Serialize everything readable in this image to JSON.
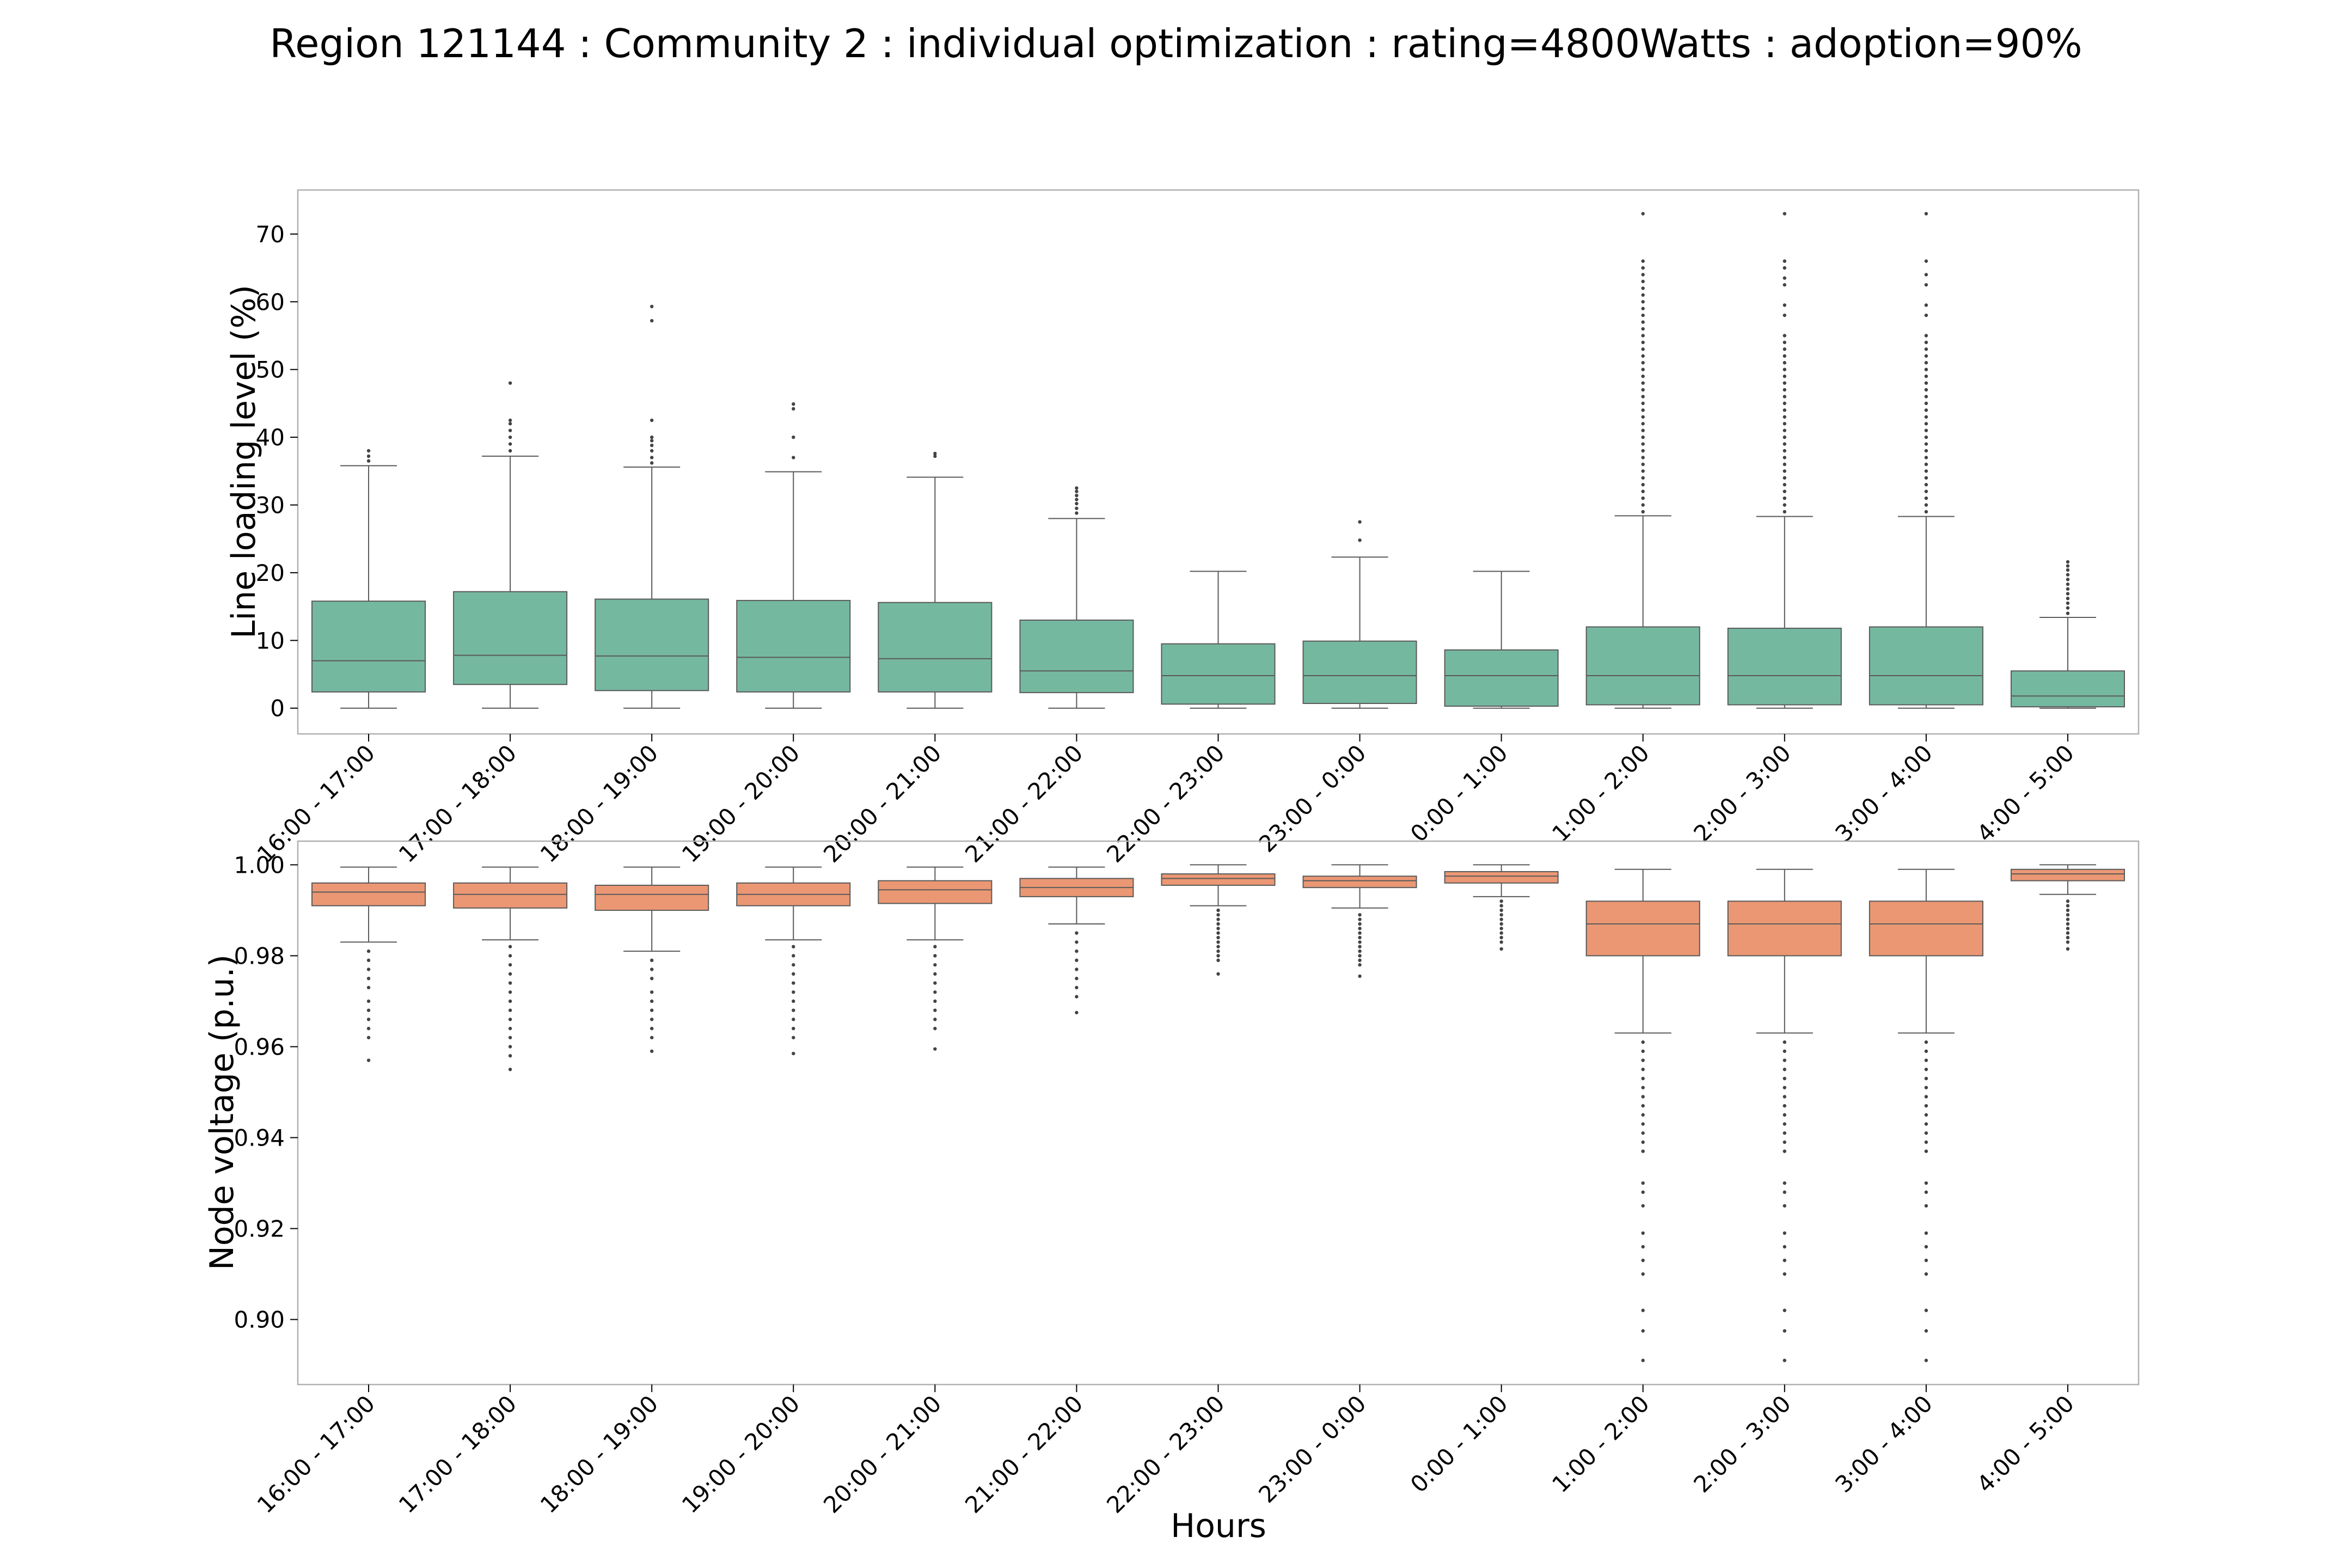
{
  "figure_title": "Region 121144 : Community 2 : individual optimization : rating=4800Watts : adoption=90%",
  "colors": {
    "line_box": "#75b8a0",
    "voltage_box": "#eb9774",
    "box_edge": "#5a5a5a",
    "axes_edge": "#b0b0b0",
    "flier": "#444444"
  },
  "chart_data": [
    {
      "type": "box",
      "title": "",
      "xlabel": "",
      "ylabel": "Line loading level (%)",
      "ylim": [
        -3.8,
        76.5
      ],
      "yticks": [
        0,
        10,
        20,
        30,
        40,
        50,
        60,
        70
      ],
      "ytick_labels": [
        "0",
        "10",
        "20",
        "30",
        "40",
        "50",
        "60",
        "70"
      ],
      "categories": [
        "16:00 - 17:00",
        "17:00 - 18:00",
        "18:00 - 19:00",
        "19:00 - 20:00",
        "20:00 - 21:00",
        "21:00 - 22:00",
        "22:00 - 23:00",
        "23:00 - 0:00",
        "0:00 - 1:00",
        "1:00 - 2:00",
        "2:00 - 3:00",
        "3:00 - 4:00",
        "4:00 - 5:00"
      ],
      "boxes": [
        {
          "whislo": 0,
          "q1": 2.4,
          "med": 7.0,
          "q3": 15.8,
          "whishi": 35.8,
          "fliers": [
            36.5,
            37.2,
            38.0
          ]
        },
        {
          "whislo": 0,
          "q1": 3.5,
          "med": 7.8,
          "q3": 17.2,
          "whishi": 37.2,
          "fliers": [
            38.0,
            39.0,
            40.0,
            41.0,
            42.0,
            42.5,
            48.0
          ]
        },
        {
          "whislo": 0,
          "q1": 2.6,
          "med": 7.7,
          "q3": 16.1,
          "whishi": 35.6,
          "fliers": [
            36.2,
            37.0,
            38.0,
            38.8,
            39.5,
            40.0,
            42.5,
            57.2,
            59.3
          ]
        },
        {
          "whislo": 0,
          "q1": 2.4,
          "med": 7.5,
          "q3": 15.9,
          "whishi": 34.9,
          "fliers": [
            37.0,
            40.0,
            44.2,
            44.9
          ]
        },
        {
          "whislo": 0,
          "q1": 2.4,
          "med": 7.3,
          "q3": 15.6,
          "whishi": 34.1,
          "fliers": [
            37.2,
            37.6
          ]
        },
        {
          "whislo": 0,
          "q1": 2.3,
          "med": 5.5,
          "q3": 13.0,
          "whishi": 28.0,
          "fliers": [
            28.8,
            29.5,
            30.2,
            30.8,
            31.4,
            32.0,
            32.5
          ]
        },
        {
          "whislo": 0,
          "q1": 0.6,
          "med": 4.8,
          "q3": 9.5,
          "whishi": 20.2,
          "fliers": []
        },
        {
          "whislo": 0,
          "q1": 0.7,
          "med": 4.8,
          "q3": 9.9,
          "whishi": 22.3,
          "fliers": [
            24.8,
            27.5
          ]
        },
        {
          "whislo": 0,
          "q1": 0.3,
          "med": 4.8,
          "q3": 8.6,
          "whishi": 20.2,
          "fliers": []
        },
        {
          "whislo": 0,
          "q1": 0.5,
          "med": 4.8,
          "q3": 12.0,
          "whishi": 28.4,
          "fliers": [
            29.0,
            30.0,
            31.0,
            32.0,
            33.0,
            34.0,
            35.0,
            36.0,
            37.0,
            38.0,
            39.0,
            40.0,
            41.0,
            42.0,
            43.0,
            44.0,
            45.0,
            46.0,
            47.0,
            48.0,
            49.0,
            50.0,
            51.0,
            52.0,
            53.0,
            54.0,
            55.0,
            56.0,
            57.0,
            58.0,
            59.0,
            60.0,
            61.0,
            62.0,
            63.0,
            64.0,
            65.0,
            66.0,
            73.0
          ]
        },
        {
          "whislo": 0,
          "q1": 0.5,
          "med": 4.8,
          "q3": 11.8,
          "whishi": 28.3,
          "fliers": [
            29.0,
            30.0,
            31.0,
            32.0,
            33.0,
            34.0,
            35.0,
            36.0,
            37.0,
            38.0,
            39.0,
            40.0,
            41.0,
            42.0,
            43.0,
            44.0,
            45.0,
            46.0,
            47.0,
            48.0,
            49.0,
            50.0,
            51.0,
            52.0,
            53.0,
            54.0,
            55.0,
            58.0,
            59.5,
            62.5,
            63.5,
            65.0,
            66.0,
            73.0
          ]
        },
        {
          "whislo": 0,
          "q1": 0.5,
          "med": 4.8,
          "q3": 12.0,
          "whishi": 28.3,
          "fliers": [
            29.0,
            30.0,
            31.0,
            32.0,
            33.0,
            34.0,
            35.0,
            36.0,
            37.0,
            38.0,
            39.0,
            40.0,
            41.0,
            42.0,
            43.0,
            44.0,
            45.0,
            46.0,
            47.0,
            48.0,
            49.0,
            50.0,
            51.0,
            52.0,
            53.0,
            54.0,
            55.0,
            58.0,
            59.5,
            62.5,
            64.0,
            66.0,
            73.0
          ]
        },
        {
          "whislo": 0,
          "q1": 0.2,
          "med": 1.8,
          "q3": 5.5,
          "whishi": 13.4,
          "fliers": [
            14.0,
            14.8,
            15.5,
            16.2,
            16.9,
            17.6,
            18.3,
            19.0,
            19.7,
            20.4,
            21.0,
            21.6
          ]
        }
      ]
    },
    {
      "type": "box",
      "title": "",
      "xlabel": "Hours",
      "ylabel": "Node voltage (p.u.)",
      "ylim": [
        0.8857,
        1.0052
      ],
      "yticks": [
        0.9,
        0.92,
        0.94,
        0.96,
        0.98,
        1.0
      ],
      "ytick_labels": [
        "0.90",
        "0.92",
        "0.94",
        "0.96",
        "0.98",
        "1.00"
      ],
      "categories": [
        "16:00 - 17:00",
        "17:00 - 18:00",
        "18:00 - 19:00",
        "19:00 - 20:00",
        "20:00 - 21:00",
        "21:00 - 22:00",
        "22:00 - 23:00",
        "23:00 - 0:00",
        "0:00 - 1:00",
        "1:00 - 2:00",
        "2:00 - 3:00",
        "3:00 - 4:00",
        "4:00 - 5:00"
      ],
      "boxes": [
        {
          "whislo": 0.983,
          "q1": 0.991,
          "med": 0.994,
          "q3": 0.996,
          "whishi": 0.9995,
          "fliers": [
            0.981,
            0.979,
            0.977,
            0.975,
            0.973,
            0.97,
            0.968,
            0.966,
            0.964,
            0.962,
            0.957
          ]
        },
        {
          "whislo": 0.9835,
          "q1": 0.9905,
          "med": 0.9935,
          "q3": 0.996,
          "whishi": 0.9995,
          "fliers": [
            0.982,
            0.98,
            0.978,
            0.976,
            0.974,
            0.972,
            0.97,
            0.968,
            0.966,
            0.964,
            0.962,
            0.96,
            0.958,
            0.955
          ]
        },
        {
          "whislo": 0.981,
          "q1": 0.99,
          "med": 0.9935,
          "q3": 0.9955,
          "whishi": 0.9995,
          "fliers": [
            0.979,
            0.977,
            0.975,
            0.972,
            0.97,
            0.968,
            0.966,
            0.964,
            0.962,
            0.959
          ]
        },
        {
          "whislo": 0.9835,
          "q1": 0.991,
          "med": 0.9935,
          "q3": 0.996,
          "whishi": 0.9995,
          "fliers": [
            0.982,
            0.98,
            0.978,
            0.976,
            0.974,
            0.972,
            0.97,
            0.968,
            0.966,
            0.964,
            0.962,
            0.9585
          ]
        },
        {
          "whislo": 0.9835,
          "q1": 0.9915,
          "med": 0.9945,
          "q3": 0.9965,
          "whishi": 0.9995,
          "fliers": [
            0.982,
            0.98,
            0.978,
            0.976,
            0.974,
            0.972,
            0.97,
            0.968,
            0.966,
            0.964,
            0.9595
          ]
        },
        {
          "whislo": 0.987,
          "q1": 0.993,
          "med": 0.995,
          "q3": 0.997,
          "whishi": 0.9995,
          "fliers": [
            0.985,
            0.983,
            0.981,
            0.979,
            0.977,
            0.975,
            0.973,
            0.971,
            0.9675
          ]
        },
        {
          "whislo": 0.991,
          "q1": 0.9955,
          "med": 0.997,
          "q3": 0.998,
          "whishi": 1.0,
          "fliers": [
            0.99,
            0.989,
            0.988,
            0.987,
            0.986,
            0.985,
            0.984,
            0.983,
            0.982,
            0.981,
            0.98,
            0.979,
            0.976
          ]
        },
        {
          "whislo": 0.9905,
          "q1": 0.995,
          "med": 0.9965,
          "q3": 0.9975,
          "whishi": 1.0,
          "fliers": [
            0.989,
            0.988,
            0.987,
            0.986,
            0.985,
            0.984,
            0.983,
            0.982,
            0.981,
            0.98,
            0.979,
            0.978,
            0.9755
          ]
        },
        {
          "whislo": 0.993,
          "q1": 0.996,
          "med": 0.9975,
          "q3": 0.9985,
          "whishi": 1.0,
          "fliers": [
            0.992,
            0.991,
            0.99,
            0.989,
            0.988,
            0.987,
            0.986,
            0.985,
            0.984,
            0.983,
            0.9815
          ]
        },
        {
          "whislo": 0.963,
          "q1": 0.98,
          "med": 0.987,
          "q3": 0.992,
          "whishi": 0.999,
          "fliers": [
            0.961,
            0.959,
            0.957,
            0.955,
            0.953,
            0.951,
            0.949,
            0.947,
            0.945,
            0.943,
            0.941,
            0.939,
            0.937,
            0.93,
            0.928,
            0.925,
            0.919,
            0.916,
            0.913,
            0.91,
            0.902,
            0.8975,
            0.891
          ]
        },
        {
          "whislo": 0.963,
          "q1": 0.98,
          "med": 0.987,
          "q3": 0.992,
          "whishi": 0.999,
          "fliers": [
            0.961,
            0.959,
            0.957,
            0.955,
            0.953,
            0.951,
            0.949,
            0.947,
            0.945,
            0.943,
            0.941,
            0.939,
            0.937,
            0.93,
            0.928,
            0.925,
            0.919,
            0.916,
            0.913,
            0.91,
            0.902,
            0.8975,
            0.891
          ]
        },
        {
          "whislo": 0.963,
          "q1": 0.98,
          "med": 0.987,
          "q3": 0.992,
          "whishi": 0.999,
          "fliers": [
            0.961,
            0.959,
            0.957,
            0.955,
            0.953,
            0.951,
            0.949,
            0.947,
            0.945,
            0.943,
            0.941,
            0.939,
            0.937,
            0.93,
            0.928,
            0.925,
            0.919,
            0.916,
            0.913,
            0.91,
            0.902,
            0.8975,
            0.891
          ]
        },
        {
          "whislo": 0.9935,
          "q1": 0.9965,
          "med": 0.998,
          "q3": 0.999,
          "whishi": 1.0,
          "fliers": [
            0.992,
            0.991,
            0.99,
            0.989,
            0.988,
            0.987,
            0.986,
            0.985,
            0.984,
            0.983,
            0.9815
          ]
        }
      ]
    }
  ]
}
